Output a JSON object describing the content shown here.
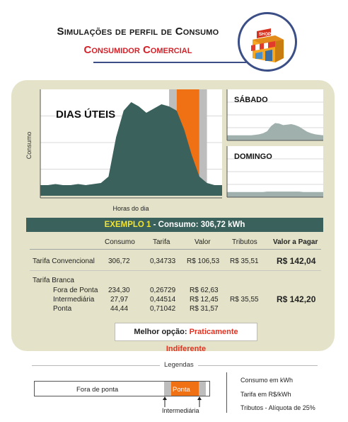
{
  "header": {
    "title": "Simulações de perfil de Consumo",
    "subtitle": "Consumidor Comercial",
    "store_sign": "SHOP"
  },
  "chart_data": [
    {
      "type": "area",
      "title": "DIAS ÚTEIS",
      "xlabel": "Horas do dia",
      "ylabel": "Consumo",
      "x": [
        0,
        1,
        2,
        3,
        4,
        5,
        6,
        7,
        8,
        9,
        10,
        11,
        12,
        13,
        14,
        15,
        16,
        17,
        18,
        19,
        20,
        21,
        22,
        23,
        24
      ],
      "values": [
        10,
        10,
        11,
        10,
        10,
        11,
        10,
        11,
        12,
        18,
        55,
        80,
        88,
        84,
        78,
        82,
        86,
        84,
        80,
        62,
        38,
        18,
        12,
        10,
        10
      ],
      "ylim": [
        0,
        100
      ],
      "highlights": [
        {
          "name": "Intermediária",
          "from": 17,
          "to": 18,
          "color": "#bdbdbd"
        },
        {
          "name": "Ponta",
          "from": 18,
          "to": 21,
          "color": "#f07014"
        },
        {
          "name": "Intermediária",
          "from": 21,
          "to": 22,
          "color": "#bdbdbd"
        }
      ],
      "grid": true
    },
    {
      "type": "area",
      "title": "SÁBADO",
      "x": [
        0,
        1,
        2,
        3,
        4,
        5,
        6,
        7,
        8,
        9,
        10,
        11,
        12,
        13,
        14,
        15,
        16,
        17,
        18,
        19,
        20,
        21,
        22,
        23,
        24
      ],
      "values": [
        10,
        10,
        10,
        10,
        10,
        10,
        10,
        11,
        12,
        14,
        18,
        28,
        34,
        33,
        30,
        31,
        32,
        30,
        27,
        22,
        17,
        14,
        12,
        11,
        10
      ],
      "ylim": [
        0,
        100
      ]
    },
    {
      "type": "area",
      "title": "DOMINGO",
      "x": [
        0,
        1,
        2,
        3,
        4,
        5,
        6,
        7,
        8,
        9,
        10,
        11,
        12,
        13,
        14,
        15,
        16,
        17,
        18,
        19,
        20,
        21,
        22,
        23,
        24
      ],
      "values": [
        10,
        10,
        10,
        10,
        10,
        10,
        10,
        10,
        10,
        10,
        11,
        11,
        11,
        11,
        11,
        11,
        11,
        11,
        11,
        10,
        10,
        10,
        10,
        10,
        10
      ],
      "ylim": [
        0,
        100
      ]
    }
  ],
  "colors": {
    "main_area": "#3a615b",
    "weekend_area": "#9fb0ad",
    "ponta": "#f07014",
    "intermediaria": "#bdbdbd",
    "panel": "#e4e3c9",
    "highlight_red": "#e8301f"
  },
  "example": {
    "label": "EXEMPLO 1",
    "text": " - Consumo: 306,72 kWh"
  },
  "table": {
    "headers": {
      "consumo": "Consumo",
      "tarifa": "Tarifa",
      "valor": "Valor",
      "tributos": "Tributos",
      "valor_pagar": "Valor a Pagar"
    },
    "convencional": {
      "label": "Tarifa Convencional",
      "consumo": "306,72",
      "tarifa": "0,34733",
      "valor": "R$ 106,53",
      "tributos": "R$ 35,51",
      "total": "R$ 142,04"
    },
    "branca": {
      "label": "Tarifa Branca",
      "rows": [
        {
          "label": "Fora de Ponta",
          "consumo": "234,30",
          "tarifa": "0,26729",
          "valor": "R$ 62,63"
        },
        {
          "label": "Intermediária",
          "consumo": "27,97",
          "tarifa": "0,44514",
          "valor": "R$ 12,45"
        },
        {
          "label": "Ponta",
          "consumo": "44,44",
          "tarifa": "0,71042",
          "valor": "R$ 31,57"
        }
      ],
      "tributos": "R$ 35,55",
      "total": "R$ 142,20"
    }
  },
  "best_option": {
    "label": "Melhor opção: ",
    "value": "Praticamente Indiferente"
  },
  "legend": {
    "title": "Legendas",
    "fora_de_ponta": "Fora de ponta",
    "ponta": "Ponta",
    "intermediaria": "Intermediária",
    "notes": [
      "Consumo em kWh",
      "Tarifa  em R$/kWh",
      "Tributos - Alíquota de 25%"
    ]
  }
}
